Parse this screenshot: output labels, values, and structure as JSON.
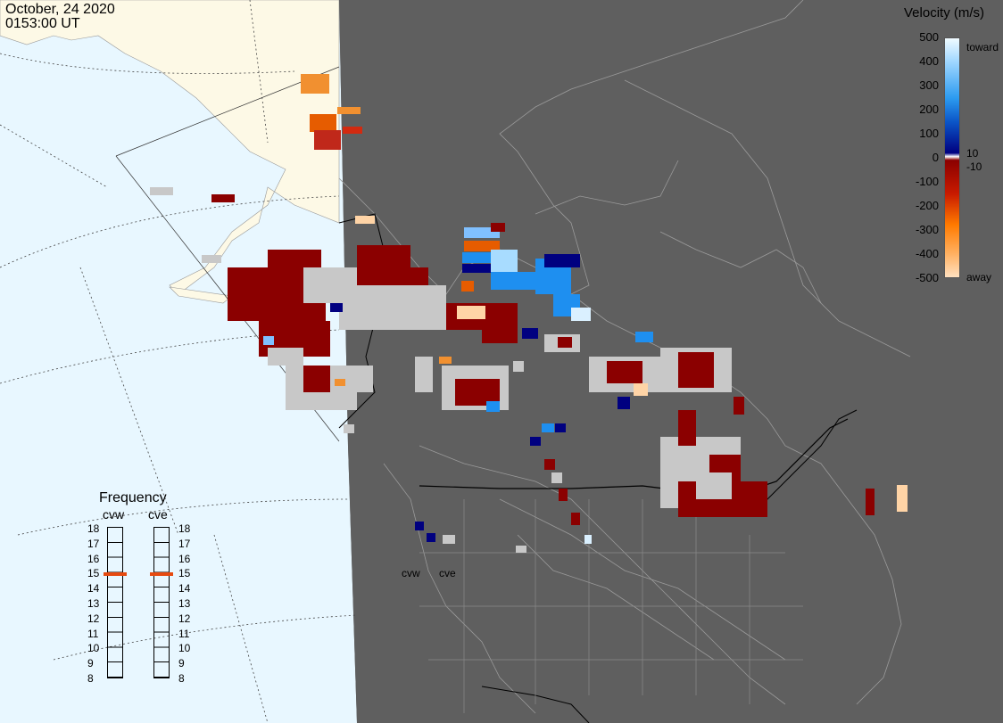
{
  "header": {
    "date": "October, 24 2020",
    "time": "0153:00 UT"
  },
  "velocity_legend": {
    "title": "Velocity (m/s)",
    "ticks": [
      "500",
      "400",
      "300",
      "200",
      "100",
      "0",
      "-100",
      "-200",
      "-300",
      "-400",
      "-500"
    ],
    "extra_ticks": [
      "10",
      "-10"
    ],
    "toward_label": "toward",
    "away_label": "away",
    "colors": {
      "toward_strong": "#daf0ff",
      "toward_mid": "#1e8ff0",
      "toward_weak": "#000080",
      "away_weak": "#8b0000",
      "away_mid": "#e64a00",
      "away_strong": "#ffd4a6",
      "ground_scatter": "#c8c8c8"
    }
  },
  "frequency_panel": {
    "title": "Frequency",
    "radars": [
      {
        "name": "cvw",
        "frequency_mhz": 15
      },
      {
        "name": "cve",
        "frequency_mhz": 15
      }
    ],
    "scale": [
      "18",
      "17",
      "16",
      "15",
      "14",
      "13",
      "12",
      "11",
      "10",
      "9",
      "8"
    ]
  },
  "map_labels": {
    "site_west": "cvw",
    "site_east": "cve"
  },
  "palette": {
    "ocean": "#e8f7ff",
    "land_daylight": "#fdf9e6",
    "night": "#5f5f5f",
    "borders": "#9a9a9a"
  }
}
